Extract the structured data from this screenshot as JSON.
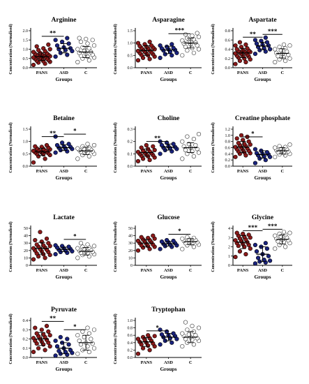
{
  "colors": {
    "PANS": "#8b1a1a",
    "ASD": "#1a237e",
    "C": "#ffffff",
    "mean_bar": "#000000"
  },
  "charts": [
    {
      "title": "Arginine",
      "ylim": [
        0,
        2.0
      ],
      "yticks": [
        "0.0",
        "0.5",
        "1.0",
        "1.5",
        "2.0"
      ],
      "ylabel": "Concentration (Normalised)",
      "xlabel": "Groups",
      "categories": [
        "PANS",
        "ASD",
        "C"
      ],
      "series": [
        {
          "group": "PANS",
          "values": [
            0.15,
            0.22,
            0.28,
            0.32,
            0.35,
            0.38,
            0.42,
            0.45,
            0.48,
            0.5,
            0.52,
            0.55,
            0.58,
            0.6,
            0.62,
            0.65,
            0.68,
            0.7,
            0.72,
            0.75,
            0.78,
            0.8,
            0.85,
            0.9,
            0.95,
            1.0,
            1.05,
            1.15,
            1.25
          ],
          "mean": 0.6,
          "sd": 0.2
        },
        {
          "group": "ASD",
          "values": [
            0.6,
            0.7,
            0.8,
            0.9,
            0.95,
            1.0,
            1.05,
            1.1,
            1.2,
            1.3,
            1.4,
            1.5,
            1.6
          ],
          "mean": 1.05,
          "sd": 0.25
        },
        {
          "group": "C",
          "values": [
            0.3,
            0.4,
            0.5,
            0.55,
            0.6,
            0.65,
            0.7,
            0.75,
            0.8,
            0.85,
            0.9,
            1.0,
            1.05,
            1.1,
            1.2,
            1.3,
            1.4,
            1.5,
            1.55,
            1.6
          ],
          "mean": 0.85,
          "sd": 0.3
        }
      ],
      "sig": [
        {
          "from": 0,
          "to": 1,
          "label": "**",
          "y": 1.7
        }
      ]
    },
    {
      "title": "Asparagine",
      "ylim": [
        0,
        1.5
      ],
      "yticks": [
        "0.0",
        "0.5",
        "1.0",
        "1.5"
      ],
      "ylabel": "Concentration (Normalised)",
      "xlabel": "Groups",
      "categories": [
        "PANS",
        "ASD",
        "C"
      ],
      "series": [
        {
          "group": "PANS",
          "values": [
            0.3,
            0.35,
            0.4,
            0.45,
            0.5,
            0.52,
            0.55,
            0.58,
            0.6,
            0.62,
            0.65,
            0.68,
            0.7,
            0.72,
            0.75,
            0.78,
            0.8,
            0.82,
            0.85,
            0.88,
            0.9,
            0.95,
            1.0,
            1.05
          ],
          "mean": 0.7,
          "sd": 0.2
        },
        {
          "group": "ASD",
          "values": [
            0.4,
            0.5,
            0.55,
            0.6,
            0.65,
            0.7,
            0.72,
            0.75,
            0.78,
            0.8,
            0.85,
            0.9,
            0.95
          ],
          "mean": 0.72,
          "sd": 0.15
        },
        {
          "group": "C",
          "values": [
            0.5,
            0.6,
            0.7,
            0.75,
            0.8,
            0.85,
            0.9,
            0.95,
            1.0,
            1.02,
            1.05,
            1.1,
            1.15,
            1.2,
            1.25,
            1.3,
            1.35,
            1.4,
            1.05,
            0.98
          ],
          "mean": 1.0,
          "sd": 0.2
        }
      ],
      "sig": [
        {
          "from": 1,
          "to": 2,
          "label": "***",
          "y": 1.38
        }
      ]
    },
    {
      "title": "Aspartate",
      "ylim": [
        0,
        0.8
      ],
      "yticks": [
        "0.0",
        "0.2",
        "0.4",
        "0.6",
        "0.8"
      ],
      "ylabel": "Concentration (Normalised)",
      "xlabel": "Groups",
      "categories": [
        "PANS",
        "ASD",
        "C"
      ],
      "series": [
        {
          "group": "PANS",
          "values": [
            0.08,
            0.12,
            0.15,
            0.18,
            0.2,
            0.22,
            0.24,
            0.25,
            0.26,
            0.28,
            0.3,
            0.31,
            0.32,
            0.33,
            0.34,
            0.35,
            0.36,
            0.37,
            0.38,
            0.4,
            0.42,
            0.45,
            0.48,
            0.5,
            0.55
          ],
          "mean": 0.32,
          "sd": 0.1
        },
        {
          "group": "ASD",
          "values": [
            0.3,
            0.35,
            0.38,
            0.4,
            0.42,
            0.45,
            0.48,
            0.5,
            0.52,
            0.55,
            0.58,
            0.6,
            0.65
          ],
          "mean": 0.47,
          "sd": 0.08
        },
        {
          "group": "C",
          "values": [
            0.12,
            0.15,
            0.18,
            0.2,
            0.22,
            0.25,
            0.28,
            0.3,
            0.32,
            0.35,
            0.38,
            0.4,
            0.42,
            0.45,
            0.48,
            0.5
          ],
          "mean": 0.31,
          "sd": 0.1
        }
      ],
      "sig": [
        {
          "from": 0,
          "to": 1,
          "label": "**",
          "y": 0.66
        },
        {
          "from": 1,
          "to": 2,
          "label": "***",
          "y": 0.72
        }
      ]
    },
    {
      "title": "Betaine",
      "ylim": [
        0,
        1.5
      ],
      "yticks": [
        "0.0",
        "0.5",
        "1.0",
        "1.5"
      ],
      "ylabel": "Concentration (Normalised)",
      "xlabel": "Groups",
      "categories": [
        "PANS",
        "ASD",
        "C"
      ],
      "series": [
        {
          "group": "PANS",
          "values": [
            0.15,
            0.3,
            0.4,
            0.45,
            0.48,
            0.5,
            0.52,
            0.55,
            0.56,
            0.58,
            0.6,
            0.62,
            0.63,
            0.65,
            0.68,
            0.7,
            0.72,
            0.75,
            0.78,
            0.8,
            0.85
          ],
          "mean": 0.58,
          "sd": 0.15
        },
        {
          "group": "ASD",
          "values": [
            0.55,
            0.6,
            0.65,
            0.7,
            0.72,
            0.75,
            0.78,
            0.8,
            0.85,
            0.9,
            0.95,
            1.2
          ],
          "mean": 0.75,
          "sd": 0.12
        },
        {
          "group": "C",
          "values": [
            0.3,
            0.4,
            0.45,
            0.5,
            0.55,
            0.58,
            0.6,
            0.62,
            0.65,
            0.68,
            0.7,
            0.72,
            0.75,
            0.8,
            0.85,
            0.9
          ],
          "mean": 0.62,
          "sd": 0.15
        }
      ],
      "sig": [
        {
          "from": 0,
          "to": 1,
          "label": "**",
          "y": 1.2
        },
        {
          "from": 1,
          "to": 2,
          "label": "*",
          "y": 1.3
        }
      ]
    },
    {
      "title": "Choline",
      "ylim": [
        0,
        0.3
      ],
      "yticks": [
        "0.0",
        "0.1",
        "0.2",
        "0.3"
      ],
      "ylabel": "Concentration (Normalised)",
      "xlabel": "Groups",
      "categories": [
        "PANS",
        "ASD",
        "C"
      ],
      "series": [
        {
          "group": "PANS",
          "values": [
            0.04,
            0.05,
            0.06,
            0.07,
            0.08,
            0.085,
            0.09,
            0.095,
            0.1,
            0.105,
            0.11,
            0.115,
            0.12,
            0.125,
            0.13,
            0.14,
            0.15,
            0.16,
            0.17
          ],
          "mean": 0.11,
          "sd": 0.03
        },
        {
          "group": "ASD",
          "values": [
            0.1,
            0.12,
            0.13,
            0.14,
            0.145,
            0.15,
            0.155,
            0.16,
            0.17,
            0.18,
            0.19,
            0.2
          ],
          "mean": 0.155,
          "sd": 0.025
        },
        {
          "group": "C",
          "values": [
            0.06,
            0.08,
            0.1,
            0.11,
            0.12,
            0.13,
            0.14,
            0.15,
            0.16,
            0.17,
            0.18,
            0.2,
            0.22,
            0.24,
            0.26
          ],
          "mean": 0.15,
          "sd": 0.04
        }
      ],
      "sig": [
        {
          "from": 0,
          "to": 1,
          "label": "**",
          "y": 0.2
        }
      ]
    },
    {
      "title": "Creatine phosphate",
      "ylim": [
        0,
        1.2
      ],
      "yticks": [
        "0.0",
        "0.2",
        "0.4",
        "0.6",
        "0.8",
        "1.0",
        "1.2"
      ],
      "ylabel": "Concentration (Normalised)",
      "xlabel": "Groups",
      "categories": [
        "PANS",
        "ASD",
        "C"
      ],
      "series": [
        {
          "group": "PANS",
          "values": [
            0.3,
            0.35,
            0.4,
            0.42,
            0.45,
            0.48,
            0.5,
            0.52,
            0.55,
            0.58,
            0.6,
            0.62,
            0.65,
            0.68,
            0.7,
            0.72,
            0.75,
            0.8,
            0.85,
            0.9,
            0.95,
            1.0
          ],
          "mean": 0.62,
          "sd": 0.18
        },
        {
          "group": "ASD",
          "values": [
            0.1,
            0.2,
            0.25,
            0.3,
            0.32,
            0.35,
            0.38,
            0.4,
            0.42,
            0.45,
            0.5,
            0.55
          ],
          "mean": 0.38,
          "sd": 0.12
        },
        {
          "group": "C",
          "values": [
            0.3,
            0.35,
            0.38,
            0.4,
            0.42,
            0.45,
            0.48,
            0.5,
            0.52,
            0.55,
            0.58,
            0.6,
            0.62,
            0.65,
            0.7
          ],
          "mean": 0.5,
          "sd": 0.1
        }
      ],
      "sig": [
        {
          "from": 0,
          "to": 1,
          "label": "*",
          "y": 0.95
        }
      ]
    },
    {
      "title": "Lactate",
      "ylim": [
        0,
        50
      ],
      "yticks": [
        "0",
        "10",
        "20",
        "30",
        "40",
        "50"
      ],
      "ylabel": "Concentration (Normalised)",
      "xlabel": "Groups",
      "categories": [
        "PANS",
        "ASD",
        "C"
      ],
      "series": [
        {
          "group": "PANS",
          "values": [
            8,
            10,
            12,
            14,
            15,
            16,
            18,
            19,
            20,
            21,
            22,
            23,
            24,
            25,
            26,
            27,
            28,
            30,
            32,
            34,
            36,
            45
          ],
          "mean": 23,
          "sd": 8
        },
        {
          "group": "ASD",
          "values": [
            15,
            17,
            18,
            19,
            20,
            21,
            22,
            23,
            24,
            25,
            26,
            27
          ],
          "mean": 21.5,
          "sd": 3
        },
        {
          "group": "C",
          "values": [
            10,
            12,
            14,
            15,
            16,
            17,
            18,
            19,
            20,
            21,
            22,
            23,
            24,
            25,
            26,
            28,
            30
          ],
          "mean": 19,
          "sd": 5
        }
      ],
      "sig": [
        {
          "from": 1,
          "to": 2,
          "label": "*",
          "y": 35
        }
      ]
    },
    {
      "title": "Glucose",
      "ylim": [
        0,
        50
      ],
      "yticks": [
        "0",
        "10",
        "20",
        "30",
        "40",
        "50"
      ],
      "ylabel": "Concentration (Normalised)",
      "xlabel": "Groups",
      "categories": [
        "PANS",
        "ASD",
        "C"
      ],
      "series": [
        {
          "group": "PANS",
          "values": [
            20,
            22,
            24,
            25,
            26,
            27,
            28,
            29,
            30,
            31,
            32,
            33,
            34,
            35,
            36,
            37,
            38,
            40
          ],
          "mean": 30,
          "sd": 5
        },
        {
          "group": "ASD",
          "values": [
            22,
            25,
            26,
            27,
            28,
            29,
            30,
            31,
            32,
            33,
            34
          ],
          "mean": 29,
          "sd": 3
        },
        {
          "group": "C",
          "values": [
            22,
            25,
            27,
            28,
            29,
            30,
            31,
            32,
            33,
            34,
            35,
            36,
            37,
            38
          ],
          "mean": 32,
          "sd": 4
        }
      ],
      "sig": [
        {
          "from": 1,
          "to": 2,
          "label": "*",
          "y": 42
        }
      ]
    },
    {
      "title": "Glycine",
      "ylim": [
        0,
        4
      ],
      "yticks": [
        "0",
        "1",
        "2",
        "3",
        "4"
      ],
      "ylabel": "Concentration (Normalised)",
      "xlabel": "Groups",
      "categories": [
        "PANS",
        "ASD",
        "C"
      ],
      "series": [
        {
          "group": "PANS",
          "values": [
            0.9,
            1.2,
            1.5,
            1.8,
            2.0,
            2.1,
            2.2,
            2.3,
            2.4,
            2.5,
            2.6,
            2.7,
            2.8,
            2.9,
            3.0,
            3.1,
            3.2,
            3.3,
            3.4,
            3.5
          ],
          "mean": 2.5,
          "sd": 0.7
        },
        {
          "group": "ASD",
          "values": [
            0.2,
            0.3,
            0.4,
            0.5,
            0.6,
            0.8,
            1.0,
            1.2,
            1.5,
            1.8,
            2.0,
            2.2,
            2.4
          ],
          "mean": 1.2,
          "sd": 0.8
        },
        {
          "group": "C",
          "values": [
            1.8,
            2.0,
            2.2,
            2.4,
            2.5,
            2.6,
            2.7,
            2.8,
            2.9,
            3.0,
            3.1,
            3.2,
            3.3,
            3.4,
            3.5,
            3.6
          ],
          "mean": 2.8,
          "sd": 0.5
        }
      ],
      "sig": [
        {
          "from": 0,
          "to": 1,
          "label": "***",
          "y": 3.75
        },
        {
          "from": 1,
          "to": 2,
          "label": "***",
          "y": 3.9
        }
      ]
    },
    {
      "title": "Pyruvate",
      "ylim": [
        0,
        0.4
      ],
      "yticks": [
        "0.0",
        "0.1",
        "0.2",
        "0.3",
        "0.4"
      ],
      "ylabel": "Concentration (Normalised)",
      "xlabel": "Groups",
      "categories": [
        "PANS",
        "ASD",
        "C"
      ],
      "series": [
        {
          "group": "PANS",
          "values": [
            0.06,
            0.08,
            0.1,
            0.12,
            0.14,
            0.15,
            0.16,
            0.17,
            0.18,
            0.19,
            0.2,
            0.21,
            0.22,
            0.23,
            0.24,
            0.25,
            0.26,
            0.28,
            0.3,
            0.32,
            0.34
          ],
          "mean": 0.2,
          "sd": 0.07
        },
        {
          "group": "ASD",
          "values": [
            0.02,
            0.03,
            0.04,
            0.05,
            0.06,
            0.07,
            0.08,
            0.1,
            0.12,
            0.14,
            0.16,
            0.18,
            0.2,
            0.22
          ],
          "mean": 0.1,
          "sd": 0.06
        },
        {
          "group": "C",
          "values": [
            0.04,
            0.06,
            0.08,
            0.1,
            0.12,
            0.14,
            0.15,
            0.16,
            0.18,
            0.2,
            0.22,
            0.24,
            0.26,
            0.28,
            0.3,
            0.32
          ],
          "mean": 0.16,
          "sd": 0.08
        }
      ],
      "sig": [
        {
          "from": 0,
          "to": 1,
          "label": "**",
          "y": 0.39
        },
        {
          "from": 1,
          "to": 2,
          "label": "*",
          "y": 0.3
        }
      ]
    },
    {
      "title": "Tryptophan",
      "ylim": [
        0,
        1.0
      ],
      "yticks": [
        "0.0",
        "0.2",
        "0.4",
        "0.6",
        "0.8",
        "1.0"
      ],
      "ylabel": "Concentration (Normalised)",
      "xlabel": "Groups",
      "categories": [
        "PANS",
        "ASD",
        "C"
      ],
      "series": [
        {
          "group": "PANS",
          "values": [
            0.1,
            0.2,
            0.25,
            0.3,
            0.32,
            0.35,
            0.38,
            0.4,
            0.42,
            0.45,
            0.48,
            0.5,
            0.52,
            0.55,
            0.58,
            0.6
          ],
          "mean": 0.42,
          "sd": 0.12
        },
        {
          "group": "ASD",
          "values": [
            0.35,
            0.4,
            0.45,
            0.5,
            0.52,
            0.55,
            0.58,
            0.6,
            0.62,
            0.65,
            0.7,
            0.75
          ],
          "mean": 0.55,
          "sd": 0.1
        },
        {
          "group": "C",
          "values": [
            0.3,
            0.35,
            0.4,
            0.45,
            0.48,
            0.5,
            0.52,
            0.55,
            0.58,
            0.6,
            0.62,
            0.65,
            0.7,
            0.75,
            0.8,
            0.85,
            0.95
          ],
          "mean": 0.55,
          "sd": 0.15
        }
      ],
      "sig": [
        {
          "from": 0,
          "to": 1,
          "label": "*",
          "y": 0.72
        }
      ]
    }
  ]
}
